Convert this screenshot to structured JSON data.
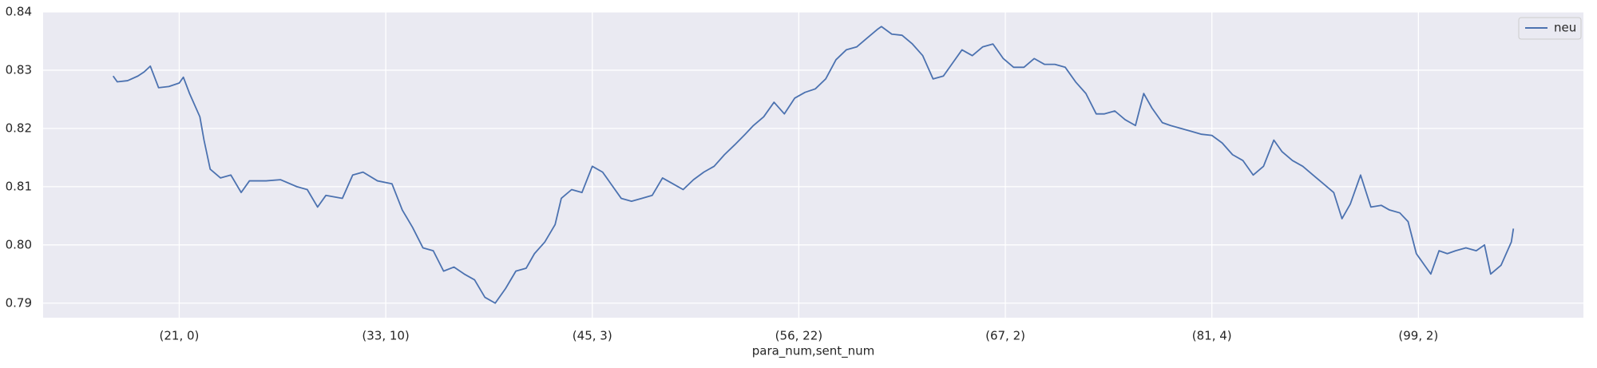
{
  "chart_data": {
    "type": "line",
    "xlabel": "para_num,sent_num",
    "x": [
      68,
      70,
      75,
      80,
      83,
      86,
      90,
      95,
      100,
      102,
      105,
      110,
      112,
      115,
      120,
      125,
      130,
      134,
      142,
      149,
      157,
      162,
      167,
      171,
      179,
      184,
      189,
      196,
      203,
      208,
      213,
      218,
      223,
      228,
      233,
      238,
      243,
      248,
      253,
      258,
      263,
      268,
      272,
      277,
      282,
      285,
      290,
      295,
      300,
      305,
      309,
      314,
      319,
      324,
      329,
      334,
      339,
      344,
      349,
      354,
      359,
      364,
      369,
      374,
      378,
      383,
      388,
      393,
      398,
      403,
      408,
      413,
      418,
      423,
      428,
      433,
      438,
      440,
      445,
      450,
      455,
      460,
      465,
      470,
      475,
      479,
      484,
      489,
      494,
      499,
      504,
      509,
      514,
      519,
      524,
      529,
      534,
      539,
      544,
      548,
      553,
      558,
      563,
      567,
      571,
      576,
      580,
      585,
      590,
      595,
      600,
      605,
      610,
      615,
      620,
      625,
      630,
      634,
      639,
      644,
      649,
      654,
      659,
      663,
      667,
      672,
      677,
      682,
      686,
      691,
      695,
      699,
      703,
      706,
      710,
      714,
      718,
      723,
      728,
      732,
      735,
      740,
      745,
      746
    ],
    "series": [
      {
        "name": "neu",
        "color": "#4c72b0",
        "values": [
          0.829,
          0.828,
          0.8282,
          0.829,
          0.8297,
          0.8307,
          0.827,
          0.8272,
          0.8278,
          0.8288,
          0.826,
          0.822,
          0.818,
          0.813,
          0.8115,
          0.812,
          0.809,
          0.811,
          0.811,
          0.8112,
          0.81,
          0.8095,
          0.8065,
          0.8085,
          0.808,
          0.812,
          0.8125,
          0.811,
          0.8105,
          0.806,
          0.803,
          0.7995,
          0.799,
          0.7955,
          0.7962,
          0.795,
          0.794,
          0.791,
          0.79,
          0.7925,
          0.7955,
          0.796,
          0.7985,
          0.8005,
          0.8035,
          0.808,
          0.8095,
          0.809,
          0.8135,
          0.8125,
          0.8105,
          0.808,
          0.8075,
          0.808,
          0.8085,
          0.8115,
          0.8105,
          0.8095,
          0.8112,
          0.8125,
          0.8135,
          0.8155,
          0.8172,
          0.819,
          0.8205,
          0.822,
          0.8245,
          0.8225,
          0.8252,
          0.8262,
          0.8268,
          0.8285,
          0.8318,
          0.8335,
          0.834,
          0.8355,
          0.837,
          0.8375,
          0.8362,
          0.836,
          0.8345,
          0.8325,
          0.8285,
          0.829,
          0.8315,
          0.8335,
          0.8325,
          0.834,
          0.8345,
          0.832,
          0.8305,
          0.8305,
          0.832,
          0.831,
          0.831,
          0.8305,
          0.828,
          0.826,
          0.8225,
          0.8225,
          0.823,
          0.8215,
          0.8205,
          0.826,
          0.8235,
          0.821,
          0.8205,
          0.82,
          0.8195,
          0.819,
          0.8188,
          0.8175,
          0.8155,
          0.8145,
          0.812,
          0.8135,
          0.818,
          0.816,
          0.8145,
          0.8135,
          0.812,
          0.8105,
          0.809,
          0.8045,
          0.807,
          0.812,
          0.8065,
          0.8068,
          0.806,
          0.8055,
          0.804,
          0.7985,
          0.7965,
          0.795,
          0.799,
          0.7985,
          0.799,
          0.7995,
          0.799,
          0.8,
          0.795,
          0.7965,
          0.8005,
          0.8028
        ]
      }
    ],
    "xlim": [
      34.1,
      779.9
    ],
    "xticks": [
      {
        "value": 100,
        "label": "(21, 0)"
      },
      {
        "value": 200,
        "label": "(33, 10)"
      },
      {
        "value": 300,
        "label": "(45, 3)"
      },
      {
        "value": 400,
        "label": "(56, 22)"
      },
      {
        "value": 500,
        "label": "(67, 2)"
      },
      {
        "value": 600,
        "label": "(81, 4)"
      },
      {
        "value": 700,
        "label": "(99, 2)"
      }
    ],
    "ylim": [
      0.7875,
      0.84
    ],
    "yticks": [
      0.79,
      {
        "value": 0.8,
        "label": "0.80"
      },
      0.81,
      0.82,
      0.83,
      0.84
    ],
    "grid": true,
    "legend": "upper-right"
  }
}
